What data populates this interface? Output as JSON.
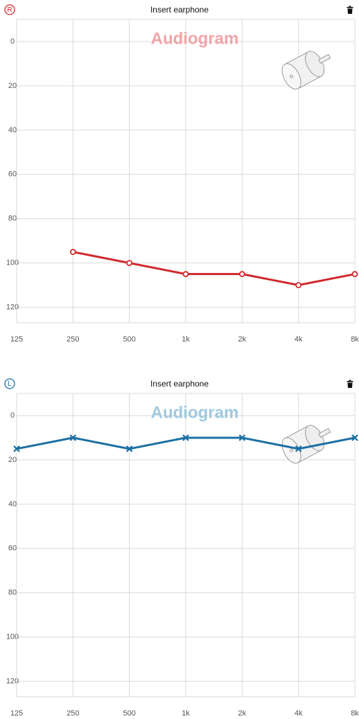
{
  "chart_data": [
    {
      "type": "line",
      "title": "Insert earphone",
      "ear": "R",
      "watermark": "Audiogram",
      "color": "#d0282c",
      "watermark_color": "#f0a5a8",
      "marker": "circle",
      "x": [
        250,
        500,
        1000,
        2000,
        4000,
        8000
      ],
      "values": [
        95,
        100,
        105,
        105,
        110,
        105
      ],
      "xscale": "log",
      "xlim": [
        125,
        8000
      ],
      "xticks": [
        125,
        250,
        500,
        {
          "value": 1000,
          "label": "1k"
        },
        {
          "value": 2000,
          "label": "2k"
        },
        {
          "value": 4000,
          "label": "4k"
        },
        {
          "value": 8000,
          "label": "8k"
        }
      ],
      "ylim": [
        -10,
        127
      ],
      "yticks": [
        0,
        20,
        40,
        60,
        80,
        100,
        120
      ],
      "yreversed": true,
      "grid": true
    },
    {
      "type": "line",
      "title": "Insert earphone",
      "ear": "L",
      "watermark": "Audiogram",
      "color": "#1a6fa3",
      "watermark_color": "#9fc9e0",
      "marker": "cross",
      "x": [
        125,
        250,
        500,
        1000,
        2000,
        4000,
        8000
      ],
      "values": [
        15,
        10,
        15,
        10,
        10,
        15,
        10
      ],
      "xscale": "log",
      "xlim": [
        125,
        8000
      ],
      "xticks": [
        125,
        250,
        500,
        {
          "value": 1000,
          "label": "1k"
        },
        {
          "value": 2000,
          "label": "2k"
        },
        {
          "value": 4000,
          "label": "4k"
        },
        {
          "value": 8000,
          "label": "8k"
        }
      ],
      "ylim": [
        -10,
        127
      ],
      "yticks": [
        0,
        20,
        40,
        60,
        80,
        100,
        120
      ],
      "yreversed": true,
      "grid": true
    }
  ]
}
